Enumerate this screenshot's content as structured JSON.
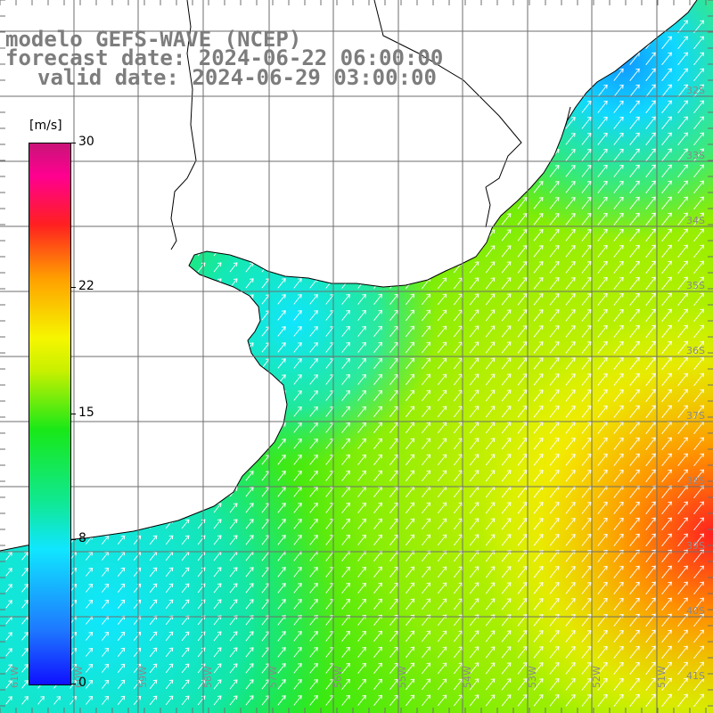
{
  "header": {
    "model_line": "modelo GEFS-WAVE (NCEP)",
    "forecast_line": "forecast date: 2024-06-22 06:00:00",
    "valid_line": "valid date: 2024-06-29 03:00:00"
  },
  "colorbar": {
    "unit": "[m/s]",
    "ticks": [
      {
        "value": 30,
        "label": "30"
      },
      {
        "value": 22,
        "label": "22"
      },
      {
        "value": 15,
        "label": "15"
      },
      {
        "value": 8,
        "label": "8"
      },
      {
        "value": 0,
        "label": "0"
      }
    ]
  },
  "chart_data": {
    "type": "heatmap",
    "variable": "wind speed with direction arrows",
    "unit": "m/s",
    "range": [
      0,
      30
    ],
    "longitude_labels": [
      "61W",
      "60W",
      "59W",
      "58W",
      "57W",
      "56W",
      "55W",
      "54W",
      "53W",
      "52W",
      "51W"
    ],
    "latitude_labels": [
      "32S",
      "33S",
      "34S",
      "35S",
      "36S",
      "37S",
      "38S",
      "39S",
      "40S",
      "41S"
    ],
    "predominant_arrow_direction": "toward northeast",
    "max_speed_region": "east, near 38S-39S, 51W",
    "colors": {
      "land": "#ffffff",
      "coast": "#000000",
      "grid": "#6e6e6e",
      "arrow": "#ffffff",
      "label": "#7d7d7d"
    }
  }
}
